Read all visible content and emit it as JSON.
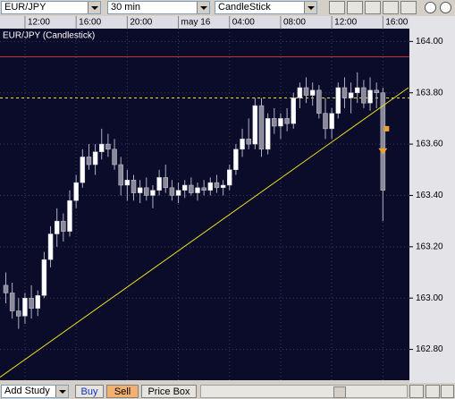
{
  "toolbar": {
    "symbol": "EUR/JPY",
    "interval": "30 min",
    "chart_style": "CandleStick"
  },
  "chart_data": {
    "type": "candlestick",
    "title": "EUR/JPY (Candlestick)",
    "categories": [
      null,
      null,
      null,
      "12:00",
      null,
      null,
      null,
      null,
      null,
      null,
      null,
      "16:00",
      null,
      null,
      null,
      null,
      null,
      null,
      null,
      "20:00",
      null,
      null,
      null,
      null,
      null,
      null,
      null,
      "may 16",
      null,
      null,
      null,
      null,
      null,
      null,
      null,
      "04:00",
      null,
      null,
      null,
      null,
      null,
      null,
      null,
      "08:00",
      null,
      null,
      null,
      null,
      null,
      null,
      null,
      "12:00",
      null,
      null,
      null,
      null,
      null,
      null,
      null,
      "16:00"
    ],
    "open": [
      163.05,
      163.02,
      162.95,
      162.93,
      163.0,
      162.96,
      163.01,
      163.15,
      163.25,
      163.3,
      163.26,
      163.38,
      163.45,
      163.55,
      163.52,
      163.57,
      163.6,
      163.58,
      163.52,
      163.44,
      163.46,
      163.41,
      163.43,
      163.4,
      163.42,
      163.47,
      163.43,
      163.4,
      163.42,
      163.44,
      163.41,
      163.43,
      163.42,
      163.45,
      163.43,
      163.44,
      163.5,
      163.58,
      163.62,
      163.6,
      163.75,
      163.58,
      163.7,
      163.67,
      163.7,
      163.68,
      163.78,
      163.82,
      163.79,
      163.81,
      163.72,
      163.66,
      163.72,
      163.82,
      163.78,
      163.8,
      163.82,
      163.76,
      163.81,
      163.8
    ],
    "high": [
      163.1,
      163.06,
      163.0,
      163.02,
      163.05,
      163.03,
      163.18,
      163.28,
      163.35,
      163.33,
      163.42,
      163.48,
      163.58,
      163.6,
      163.6,
      163.66,
      163.64,
      163.62,
      163.55,
      163.5,
      163.48,
      163.46,
      163.47,
      163.44,
      163.5,
      163.52,
      163.46,
      163.45,
      163.46,
      163.47,
      163.45,
      163.46,
      163.47,
      163.48,
      163.46,
      163.52,
      163.6,
      163.66,
      163.7,
      163.78,
      163.78,
      163.72,
      163.74,
      163.72,
      163.74,
      163.8,
      163.84,
      163.86,
      163.84,
      163.83,
      163.78,
      163.74,
      163.84,
      163.86,
      163.84,
      163.88,
      163.85,
      163.86,
      163.84,
      163.82
    ],
    "low": [
      162.98,
      162.92,
      162.88,
      162.9,
      162.92,
      162.93,
      163.0,
      163.12,
      163.2,
      163.22,
      163.24,
      163.35,
      163.43,
      163.5,
      163.48,
      163.54,
      163.55,
      163.5,
      163.4,
      163.38,
      163.38,
      163.37,
      163.38,
      163.35,
      163.4,
      163.41,
      163.38,
      163.37,
      163.39,
      163.4,
      163.38,
      163.4,
      163.4,
      163.41,
      163.4,
      163.42,
      163.48,
      163.55,
      163.58,
      163.58,
      163.55,
      163.56,
      163.64,
      163.62,
      163.65,
      163.66,
      163.74,
      163.76,
      163.75,
      163.7,
      163.62,
      163.62,
      163.7,
      163.74,
      163.72,
      163.76,
      163.74,
      163.73,
      163.74,
      163.3
    ],
    "close": [
      163.02,
      162.95,
      162.93,
      163.0,
      162.96,
      163.01,
      163.15,
      163.25,
      163.3,
      163.26,
      163.38,
      163.45,
      163.55,
      163.52,
      163.57,
      163.6,
      163.58,
      163.52,
      163.44,
      163.46,
      163.41,
      163.43,
      163.4,
      163.42,
      163.47,
      163.43,
      163.4,
      163.42,
      163.44,
      163.41,
      163.43,
      163.42,
      163.45,
      163.43,
      163.44,
      163.5,
      163.58,
      163.62,
      163.6,
      163.75,
      163.58,
      163.7,
      163.67,
      163.7,
      163.68,
      163.78,
      163.82,
      163.79,
      163.81,
      163.72,
      163.66,
      163.72,
      163.82,
      163.78,
      163.8,
      163.82,
      163.76,
      163.81,
      163.8,
      163.42
    ],
    "up_color": "#ffffff",
    "down_color": "#8a8a9a",
    "wick_color": "#b0b0c0",
    "ylim": [
      162.68,
      164.05
    ],
    "yticks": [
      {
        "value": 164.0,
        "label": "164.00"
      },
      {
        "value": 163.8,
        "label": "163.80"
      },
      {
        "value": 163.6,
        "label": "163.60"
      },
      {
        "value": 163.4,
        "label": "163.40"
      },
      {
        "value": 163.2,
        "label": "163.20"
      },
      {
        "value": 163.0,
        "label": "163.00"
      },
      {
        "value": 162.8,
        "label": "162.80"
      }
    ],
    "grid": true,
    "levels": [
      {
        "value": 163.94,
        "color": "#c03030",
        "dashed": false
      },
      {
        "value": 163.78,
        "color": "#e8e020",
        "dashed": true
      }
    ],
    "trendline": {
      "x": [
        -1,
        63
      ],
      "y": [
        162.69,
        163.82
      ],
      "color": "#e8e020"
    },
    "markers": [
      {
        "shape": "square",
        "value": 163.66,
        "color": "#f0a030"
      },
      {
        "shape": "triangle",
        "value": 163.57,
        "color": "#f0a030"
      }
    ]
  },
  "bottom_toolbar": {
    "study": "Add Study",
    "buy": "Buy",
    "sell": "Sell",
    "price_box": "Price Box"
  }
}
